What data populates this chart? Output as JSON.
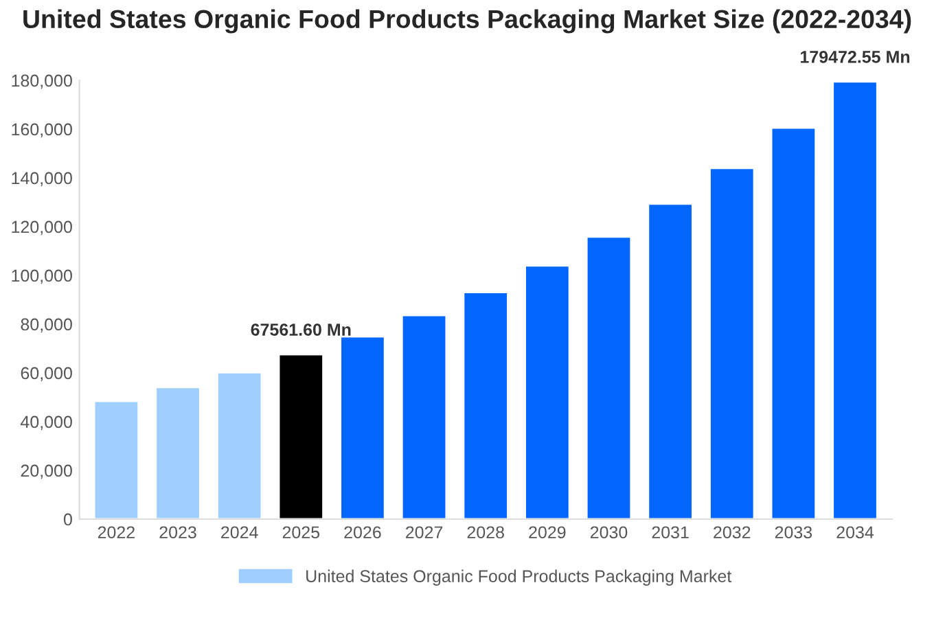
{
  "chart_data": {
    "type": "bar",
    "title": "United States Organic Food Products Packaging Market Size (2022-2034)",
    "categories": [
      "2022",
      "2023",
      "2024",
      "2025",
      "2026",
      "2027",
      "2028",
      "2029",
      "2030",
      "2031",
      "2032",
      "2033",
      "2034"
    ],
    "series": [
      {
        "name": "United States Organic Food Products Packaging Market",
        "color": "#a0cfff",
        "values": [
          48400,
          54100,
          60200,
          67561.6,
          74900,
          83600,
          93100,
          104000,
          115800,
          129300,
          144000,
          160500,
          179472.55
        ],
        "colors": [
          "#a0cfff",
          "#a0cfff",
          "#a0cfff",
          "#000000",
          "#0066ff",
          "#0066ff",
          "#0066ff",
          "#0066ff",
          "#0066ff",
          "#0066ff",
          "#0066ff",
          "#0066ff",
          "#0066ff"
        ],
        "value_labels": [
          null,
          null,
          null,
          "67561.60 Mn",
          null,
          null,
          null,
          null,
          null,
          null,
          null,
          null,
          "179472.55 Mn"
        ]
      }
    ],
    "ylim": [
      0,
      180000
    ],
    "yticks": [
      {
        "value": 0,
        "label": "0"
      },
      {
        "value": 20000,
        "label": "20,000"
      },
      {
        "value": 40000,
        "label": "40,000"
      },
      {
        "value": 60000,
        "label": "60,000"
      },
      {
        "value": 80000,
        "label": "80,000"
      },
      {
        "value": 100000,
        "label": "100,000"
      },
      {
        "value": 120000,
        "label": "120,000"
      },
      {
        "value": 140000,
        "label": "140,000"
      },
      {
        "value": 160000,
        "label": "160,000"
      },
      {
        "value": 180000,
        "label": "180,000"
      }
    ],
    "grid": false,
    "legend": "bottom"
  }
}
